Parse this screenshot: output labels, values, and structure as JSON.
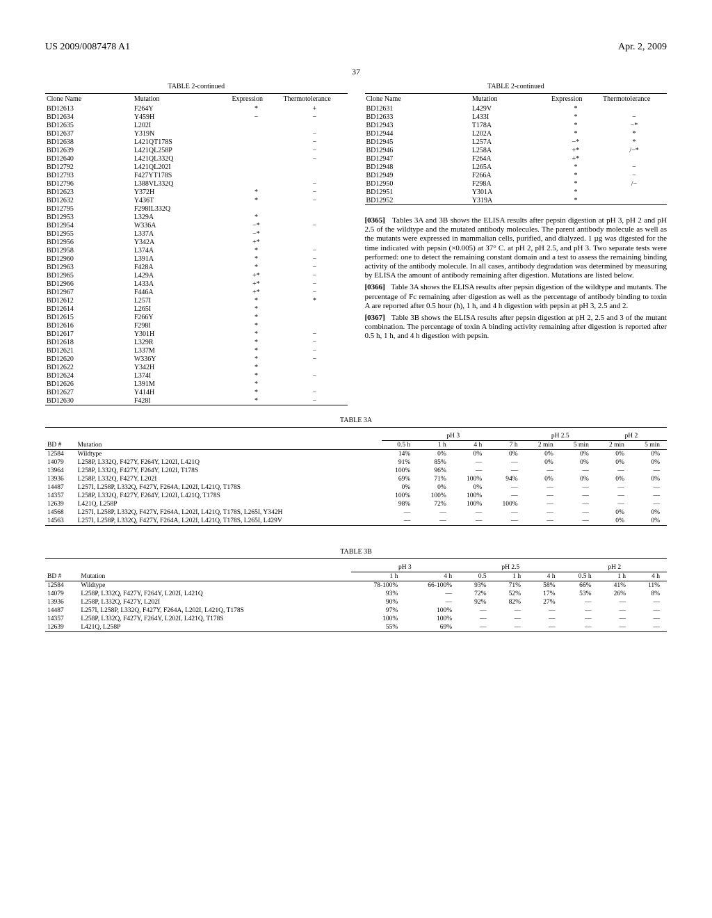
{
  "header": {
    "left": "US 2009/0087478 A1",
    "right": "Apr. 2, 2009"
  },
  "page_number": "37",
  "table2": {
    "title": "TABLE 2-continued",
    "columns": [
      "Clone Name",
      "Mutation",
      "Expression",
      "Thermotolerance"
    ],
    "left_rows": [
      [
        "BD12613",
        "F264Y",
        "*",
        "+"
      ],
      [
        "BD12634",
        "Y459H",
        "−",
        "−"
      ],
      [
        "BD12635",
        "L202I",
        "",
        ""
      ],
      [
        "BD12637",
        "Y319N",
        "",
        "−"
      ],
      [
        "BD12638",
        "L421QT178S",
        "",
        "−"
      ],
      [
        "BD12639",
        "L421QL258P",
        "",
        "−"
      ],
      [
        "BD12640",
        "L421QL332Q",
        "",
        "−"
      ],
      [
        "BD12792",
        "L421QL202I",
        "",
        ""
      ],
      [
        "BD12793",
        "F427YT178S",
        "",
        ""
      ],
      [
        "BD12796",
        "L388VL332Q",
        "",
        "−"
      ],
      [
        "BD12623",
        "Y372H",
        "*",
        "−"
      ],
      [
        "BD12632",
        "Y436T",
        "*",
        "−"
      ],
      [
        "BD12795",
        "F298IL332Q",
        "",
        ""
      ],
      [
        "BD12953",
        "L329A",
        "*",
        ""
      ],
      [
        "BD12954",
        "W336A",
        "−*",
        "−"
      ],
      [
        "BD12955",
        "L337A",
        "−*",
        ""
      ],
      [
        "BD12956",
        "Y342A",
        "+*",
        ""
      ],
      [
        "BD12958",
        "L374A",
        "*",
        "−"
      ],
      [
        "BD12960",
        "L391A",
        "*",
        "−"
      ],
      [
        "BD12963",
        "F428A",
        "*",
        "−"
      ],
      [
        "BD12965",
        "L429A",
        "+*",
        "−"
      ],
      [
        "BD12966",
        "L433A",
        "+*",
        "−"
      ],
      [
        "BD12967",
        "F446A",
        "+*",
        "−"
      ],
      [
        "BD12612",
        "L257I",
        "*",
        "*"
      ],
      [
        "BD12614",
        "L265I",
        "*",
        ""
      ],
      [
        "BD12615",
        "F266Y",
        "*",
        ""
      ],
      [
        "BD12616",
        "F298I",
        "*",
        ""
      ],
      [
        "BD12617",
        "Y301H",
        "*",
        "−"
      ],
      [
        "BD12618",
        "L329R",
        "*",
        "−"
      ],
      [
        "BD12621",
        "L337M",
        "*",
        "−"
      ],
      [
        "BD12620",
        "W336Y",
        "*",
        "−"
      ],
      [
        "BD12622",
        "Y342H",
        "*",
        ""
      ],
      [
        "BD12624",
        "L374I",
        "*",
        "−"
      ],
      [
        "BD12626",
        "L391M",
        "*",
        ""
      ],
      [
        "BD12627",
        "Y414H",
        "*",
        "−"
      ],
      [
        "BD12630",
        "F428I",
        "*",
        "−"
      ]
    ],
    "right_rows": [
      [
        "BD12631",
        "L429V",
        "*",
        ""
      ],
      [
        "BD12633",
        "L433I",
        "*",
        "−"
      ],
      [
        "BD12943",
        "T178A",
        "*",
        "−*"
      ],
      [
        "BD12944",
        "L202A",
        "*",
        "*"
      ],
      [
        "BD12945",
        "L257A",
        "−*",
        "*"
      ],
      [
        "BD12946",
        "L258A",
        "+*",
        "/−*"
      ],
      [
        "BD12947",
        "F264A",
        "+*",
        ""
      ],
      [
        "BD12948",
        "L265A",
        "*",
        "−"
      ],
      [
        "BD12949",
        "F266A",
        "*",
        "−"
      ],
      [
        "BD12950",
        "F298A",
        "*",
        "/−"
      ],
      [
        "BD12951",
        "Y301A",
        "*",
        ""
      ],
      [
        "BD12952",
        "Y319A",
        "*",
        ""
      ]
    ]
  },
  "paragraphs": [
    {
      "num": "[0365]",
      "text": "Tables 3A and 3B shows the ELISA results after pepsin digestion at pH 3, pH 2 and pH 2.5 of the wildtype and the mutated antibody molecules. The parent antibody molecule as well as the mutants were expressed in mammalian cells, purified, and dialyzed. 1 µg was digested for the time indicated with pepsin (×0.005) at 37° C. at pH 2, pH 2.5, and pH 3. Two separate tests were performed: one to detect the remaining constant domain and a test to assess the remaining binding activity of the antibody molecule. In all cases, antibody degradation was determined by measuring by ELISA the amount of antibody remaining after digestion. Mutations are listed below."
    },
    {
      "num": "[0366]",
      "text": "Table 3A shows the ELISA results after pepsin digestion of the wildtype and mutants. The percentage of Fc remaining after digestion as well as the percentage of antibody binding to toxin A are reported after 0.5 hour (h), 1 h, and 4 h digestion with pepsin at pH 3, 2.5 and 2."
    },
    {
      "num": "[0367]",
      "text": "Table 3B shows the ELISA results after pepsin digestion at pH 2, 2.5 and 3 of the mutant combination. The percentage of toxin A binding activity remaining after digestion is reported after 0.5 h, 1 h, and 4 h digestion with pepsin."
    }
  ],
  "table3a": {
    "title": "TABLE 3A",
    "group_headers": [
      "pH 3",
      "pH 2.5",
      "pH 2"
    ],
    "sub_headers": [
      "BD #",
      "Mutation",
      "0.5 h",
      "1 h",
      "4 h",
      "7 h",
      "2 min",
      "5 min",
      "2 min",
      "5 min"
    ],
    "rows": [
      [
        "12584",
        "Wildtype",
        "14%",
        "0%",
        "0%",
        "0%",
        "0%",
        "0%",
        "0%",
        "0%"
      ],
      [
        "14079",
        "L258P, L332Q, F427Y, F264Y, L202I, L421Q",
        "91%",
        "85%",
        "—",
        "—",
        "0%",
        "0%",
        "0%",
        "0%"
      ],
      [
        "13964",
        "L258P, L332Q, F427Y, F264Y, L202I, T178S",
        "100%",
        "96%",
        "—",
        "—",
        "—",
        "—",
        "—",
        "—"
      ],
      [
        "13936",
        "L258P, L332Q, F427Y, L202I",
        "69%",
        "71%",
        "100%",
        "94%",
        "0%",
        "0%",
        "0%",
        "0%"
      ],
      [
        "14487",
        "L257I, L258P, L332Q, F427Y, F264A, L202I, L421Q, T178S",
        "0%",
        "0%",
        "0%",
        "—",
        "—",
        "—",
        "—",
        "—"
      ],
      [
        "14357",
        "L258P, L332Q, F427Y, F264Y, L202I, L421Q, T178S",
        "100%",
        "100%",
        "100%",
        "—",
        "—",
        "—",
        "—",
        "—"
      ],
      [
        "12639",
        "L421Q, L258P",
        "98%",
        "72%",
        "100%",
        "100%",
        "—",
        "—",
        "—",
        "—"
      ],
      [
        "14568",
        "L257I, L258P, L332Q, F427Y, F264A, L202I, L421Q, T178S, L265I, Y342H",
        "—",
        "—",
        "—",
        "—",
        "—",
        "—",
        "0%",
        "0%"
      ],
      [
        "14563",
        "L257I, L258P, L332Q, F427Y, F264A, L202I, L421Q, T178S, L265I, L429V",
        "—",
        "—",
        "—",
        "—",
        "—",
        "—",
        "0%",
        "0%"
      ]
    ]
  },
  "table3b": {
    "title": "TABLE 3B",
    "group_headers": [
      "pH 3",
      "pH 2.5",
      "pH 2"
    ],
    "sub_headers": [
      "BD #",
      "Mutation",
      "1 h",
      "4 h",
      "0.5",
      "1 h",
      "4 h",
      "0.5 h",
      "1 h",
      "4 h"
    ],
    "rows": [
      [
        "12584",
        "Wildtype",
        "78-100%",
        "66-100%",
        "93%",
        "71%",
        "58%",
        "66%",
        "41%",
        "11%"
      ],
      [
        "14079",
        "L258P, L332Q, F427Y, F264Y, L202I, L421Q",
        "93%",
        "—",
        "72%",
        "52%",
        "17%",
        "53%",
        "26%",
        "8%"
      ],
      [
        "13936",
        "L258P, L332Q, F427Y, L202I",
        "90%",
        "—",
        "92%",
        "82%",
        "27%",
        "—",
        "—",
        "—"
      ],
      [
        "14487",
        "L257I, L258P, L332Q, F427Y, F264A, L202I, L421Q, T178S",
        "97%",
        "100%",
        "—",
        "—",
        "—",
        "—",
        "—",
        "—"
      ],
      [
        "14357",
        "L258P, L332Q, F427Y, F264Y, L202I, L421Q, T178S",
        "100%",
        "100%",
        "—",
        "—",
        "—",
        "—",
        "—",
        "—"
      ],
      [
        "12639",
        "L421Q, L258P",
        "55%",
        "69%",
        "—",
        "—",
        "—",
        "—",
        "—",
        "—"
      ]
    ]
  }
}
